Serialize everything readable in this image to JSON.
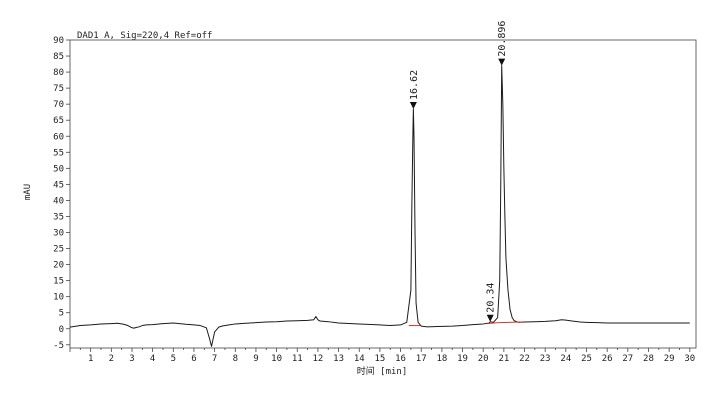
{
  "chart_data": {
    "type": "line",
    "title": "DAD1 A, Sig=220,4 Ref=off",
    "xlabel": "时间 [min]",
    "ylabel": "mAU",
    "xlim": [
      0,
      30.3
    ],
    "ylim": [
      -6,
      90
    ],
    "x_ticks": [
      1,
      2,
      3,
      4,
      5,
      6,
      7,
      8,
      9,
      10,
      11,
      12,
      13,
      14,
      15,
      16,
      17,
      18,
      19,
      20,
      21,
      22,
      23,
      24,
      25,
      26,
      27,
      28,
      29,
      30
    ],
    "y_ticks": [
      -5,
      0,
      5,
      10,
      15,
      20,
      25,
      30,
      35,
      40,
      45,
      50,
      55,
      60,
      65,
      70,
      75,
      80,
      85,
      90
    ],
    "grid": false,
    "colors": {
      "trace": "#1a1a1a",
      "baseline": "#d23a2a"
    },
    "series": [
      {
        "x": [
          0.0,
          0.5,
          1.0,
          1.5,
          2.0,
          2.3,
          2.6,
          2.8,
          3.0,
          3.1,
          3.2,
          3.35,
          3.5,
          3.7,
          4.0,
          4.5,
          5.0,
          5.3,
          5.6,
          6.0,
          6.3,
          6.6,
          6.75,
          6.85,
          6.9,
          7.0,
          7.2,
          7.4,
          7.7,
          8.0,
          8.5,
          9.0,
          9.5,
          10.0,
          10.5,
          11.0,
          11.5,
          11.8,
          11.9,
          12.0,
          12.1,
          12.5,
          13.0,
          14.0,
          15.0,
          15.5,
          16.0,
          16.3,
          16.5,
          16.55,
          16.6,
          16.62,
          16.65,
          16.7,
          16.75,
          16.85,
          17.0,
          17.3,
          17.8,
          18.5,
          19.0,
          19.5,
          20.0,
          20.3,
          20.34,
          20.5,
          20.7,
          20.8,
          20.85,
          20.896,
          20.95,
          21.0,
          21.05,
          21.1,
          21.2,
          21.3,
          21.4,
          21.5,
          21.7,
          22.0,
          22.5,
          23.0,
          23.5,
          23.8,
          24.0,
          24.3,
          24.7,
          25.0,
          25.5,
          26.0,
          27.0,
          28.0,
          29.0,
          30.0
        ],
        "y": [
          0.5,
          1.0,
          1.2,
          1.5,
          1.6,
          1.7,
          1.4,
          1.0,
          0.3,
          0.2,
          0.4,
          0.6,
          1.0,
          1.2,
          1.3,
          1.6,
          1.8,
          1.6,
          1.4,
          1.2,
          1.0,
          0.3,
          -3.0,
          -5.5,
          -4.0,
          -1.0,
          0.5,
          0.9,
          1.2,
          1.5,
          1.7,
          1.9,
          2.1,
          2.2,
          2.4,
          2.5,
          2.6,
          2.8,
          3.8,
          2.8,
          2.4,
          2.2,
          1.8,
          1.5,
          1.2,
          1.0,
          1.2,
          2.0,
          12.0,
          40.0,
          62.0,
          68.5,
          60.0,
          30.0,
          8.0,
          2.0,
          0.8,
          0.6,
          0.7,
          0.8,
          1.0,
          1.3,
          1.5,
          1.8,
          2.2,
          2.0,
          3.5,
          15.0,
          45.0,
          82.0,
          70.0,
          50.0,
          35.0,
          22.0,
          12.0,
          6.0,
          3.5,
          2.5,
          2.0,
          2.1,
          2.2,
          2.3,
          2.5,
          2.8,
          2.7,
          2.4,
          2.1,
          2.0,
          1.9,
          1.8,
          1.8,
          1.8,
          1.8,
          1.8
        ]
      }
    ],
    "baseline_segments": [
      {
        "x": [
          16.4,
          16.95
        ],
        "y": [
          1.0,
          1.0
        ]
      },
      {
        "x": [
          20.2,
          20.75
        ],
        "y": [
          1.6,
          1.9
        ]
      },
      {
        "x": [
          20.75,
          21.9
        ],
        "y": [
          1.9,
          2.1
        ]
      }
    ],
    "peak_annotations": [
      {
        "x": 16.62,
        "y": 68.5,
        "label": "16.62"
      },
      {
        "x": 20.34,
        "y": 2.2,
        "label": "20.34"
      },
      {
        "x": 20.896,
        "y": 82.0,
        "label": "20.896"
      }
    ]
  }
}
